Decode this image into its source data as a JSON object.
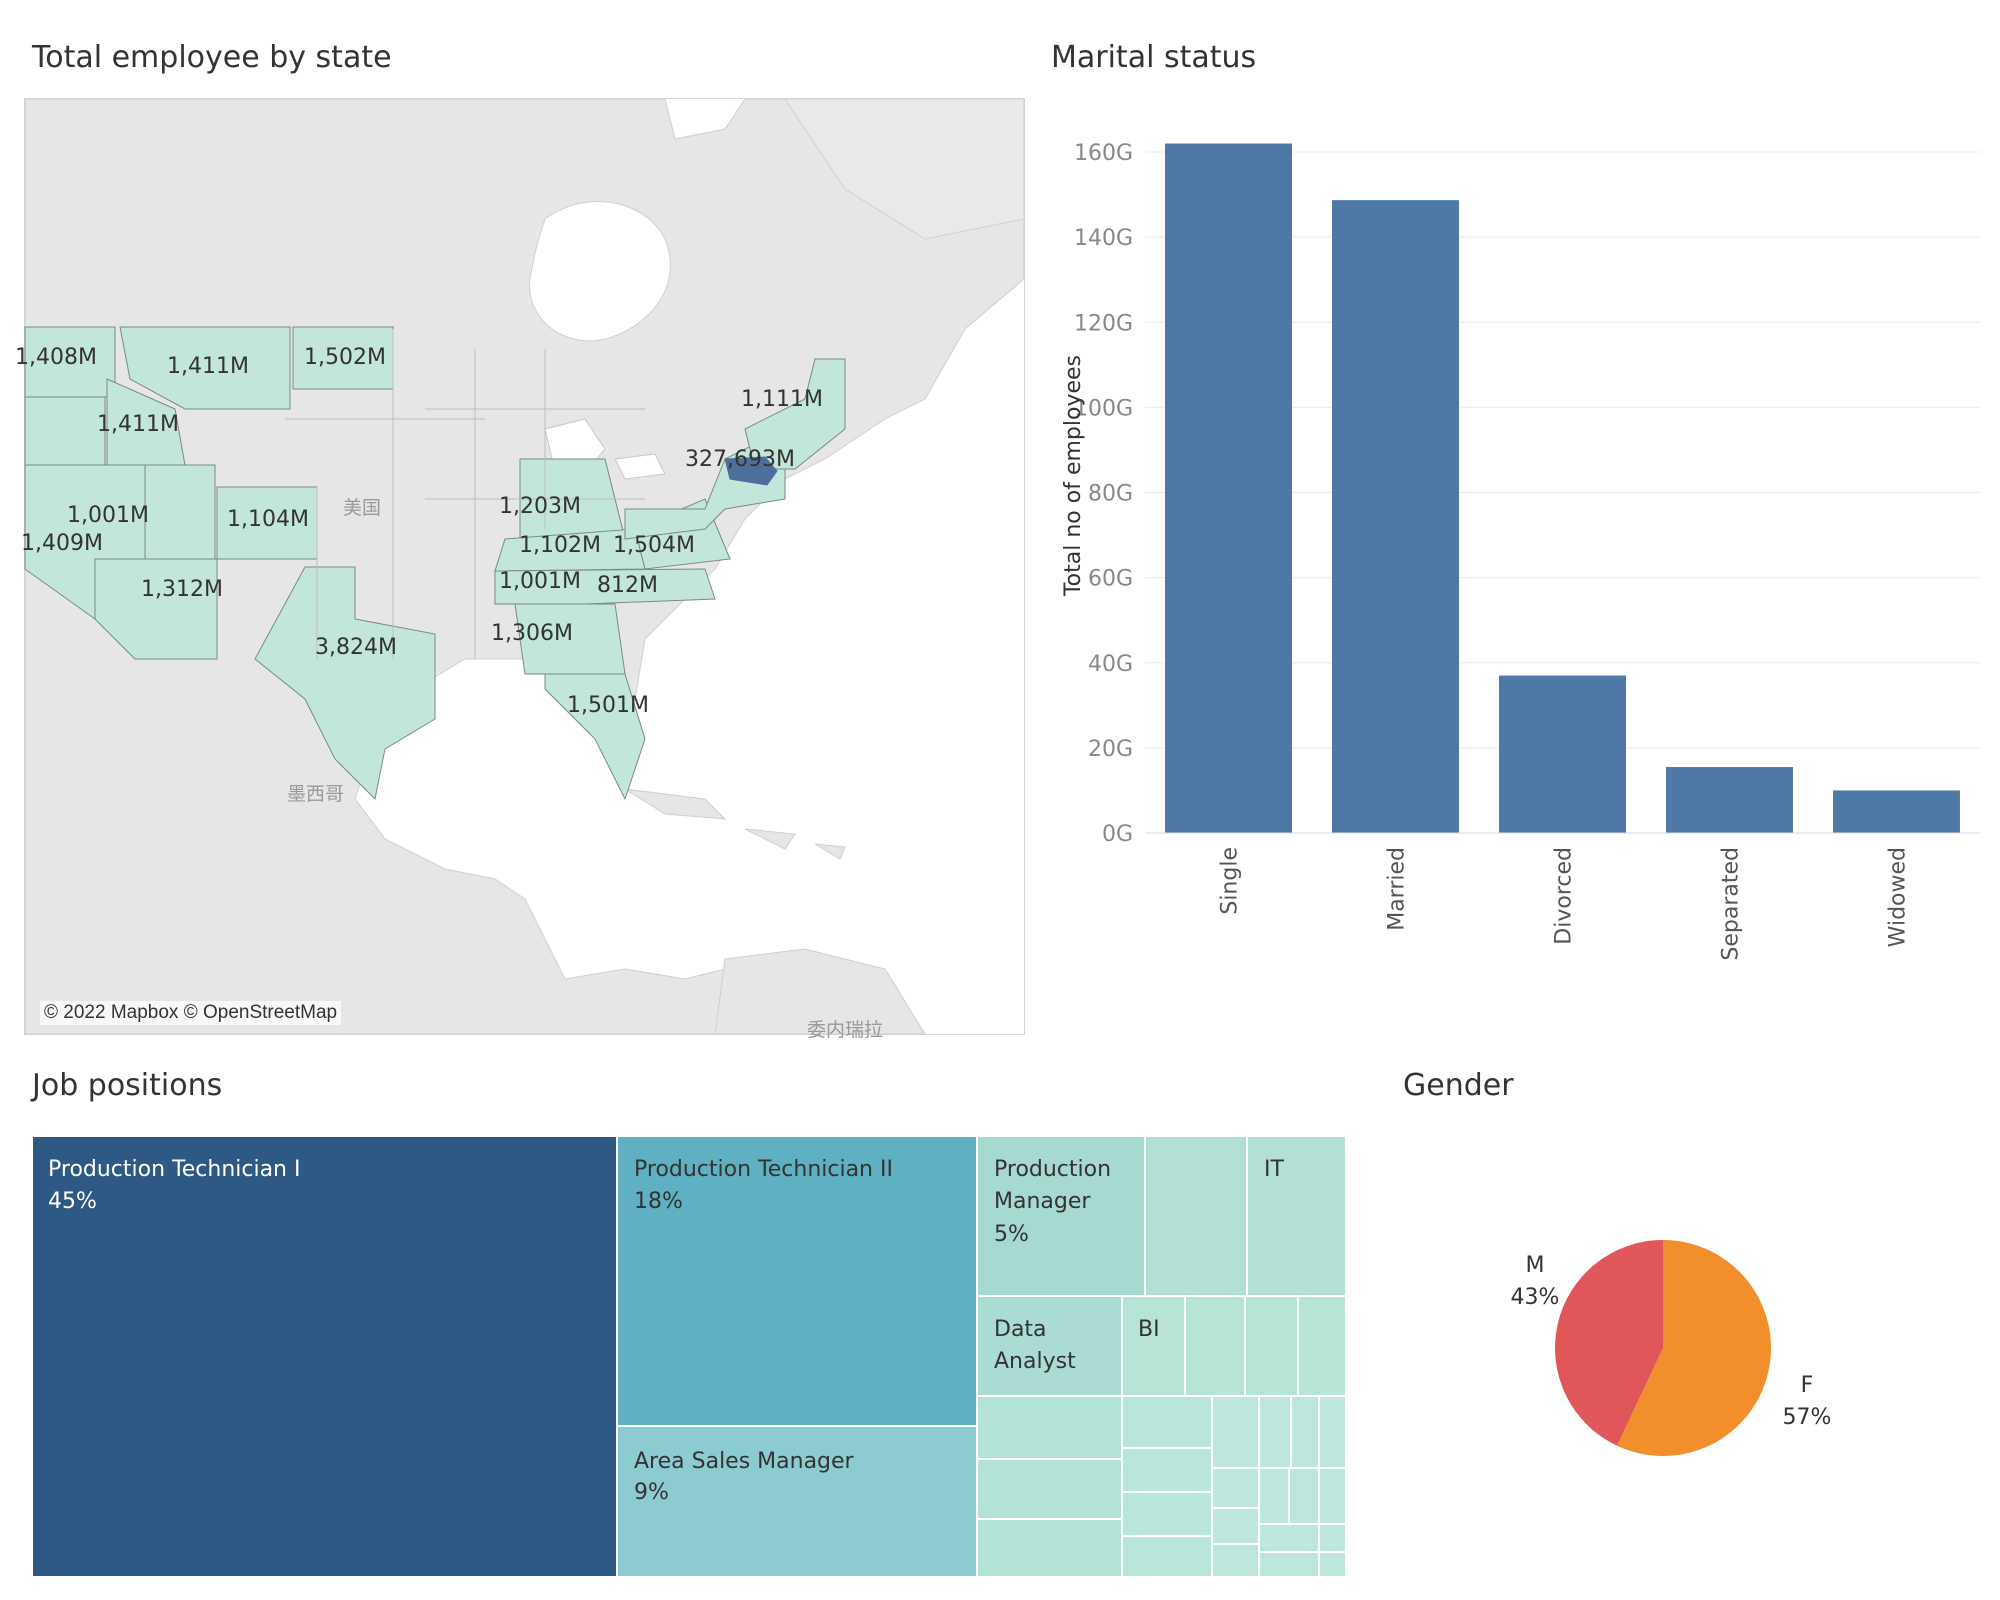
{
  "dashboard": {
    "map_title": "Total employee by state",
    "marital_title": "Marital status",
    "jobs_title": "Job positions",
    "gender_title": "Gender"
  },
  "map": {
    "attribution": "© 2022 Mapbox © OpenStreetMap",
    "place_labels": [
      "美国",
      "墨西哥",
      "委内瑞拉"
    ],
    "state_values": [
      "1,408M",
      "1,411M",
      "1,502M",
      "1,411M",
      "1,001M",
      "1,104M",
      "1,409M",
      "1,312M",
      "3,824M",
      "1,203M",
      "1,102M",
      "1,504M",
      "1,001M",
      "812M",
      "1,306M",
      "1,501M",
      "1,111M",
      "327,693M"
    ],
    "colors": {
      "state_fill": "#c3e6db",
      "highlight_fill": "#4e6f9c",
      "land": "#e8e8e8",
      "water": "#ffffff"
    }
  },
  "chart_data": [
    {
      "type": "bar",
      "title": "Marital status",
      "xlabel": "",
      "ylabel": "Total no of employees",
      "categories": [
        "Single",
        "Married",
        "Divorced",
        "Separated",
        "Widowed"
      ],
      "values": [
        162,
        148.7,
        37,
        15.5,
        10
      ],
      "value_unit": "G",
      "ylim": [
        0,
        168
      ],
      "yticks": [
        0,
        20,
        40,
        60,
        80,
        100,
        120,
        140,
        160
      ],
      "ytick_labels": [
        "0G",
        "20G",
        "40G",
        "60G",
        "80G",
        "100G",
        "120G",
        "140G",
        "160G"
      ],
      "color": "#4e79a7"
    },
    {
      "type": "treemap",
      "title": "Job positions",
      "items": [
        {
          "name": "Production Technician I",
          "percent": "45%"
        },
        {
          "name": "Production Technician II",
          "percent": "18%"
        },
        {
          "name": "Area Sales Manager",
          "percent": "9%"
        },
        {
          "name": "Production Manager",
          "percent": "5%"
        },
        {
          "name": "IT",
          "percent": ""
        },
        {
          "name": "Data Analyst",
          "percent": ""
        },
        {
          "name": "BI",
          "percent": ""
        }
      ],
      "colors": {
        "dark": "#2e5984",
        "mid": "#5fb0c2",
        "light_mid": "#8ccbcf",
        "light": "#a6d9d0",
        "lightest": "#b8e4d8"
      }
    },
    {
      "type": "pie",
      "title": "Gender",
      "slices": [
        {
          "label": "M",
          "value": 43,
          "display": "43%",
          "color": "#e15759"
        },
        {
          "label": "F",
          "value": 57,
          "display": "57%",
          "color": "#f28e2b"
        }
      ]
    }
  ]
}
